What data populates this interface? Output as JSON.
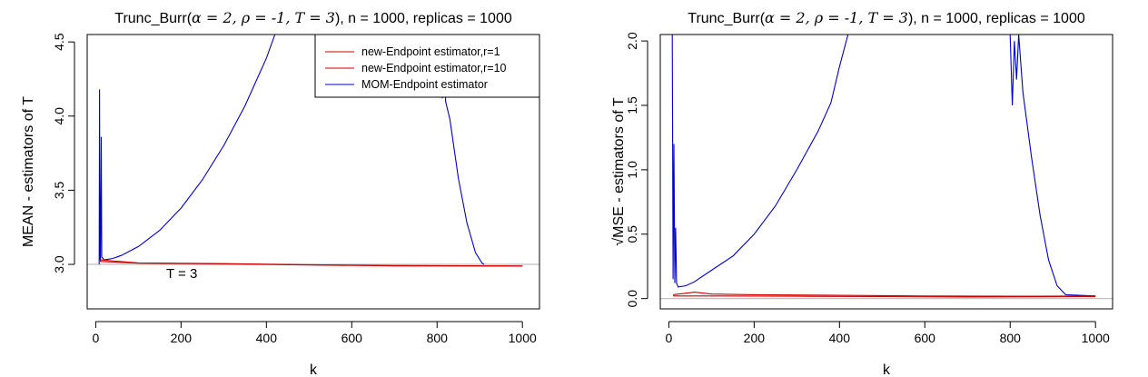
{
  "colors": {
    "new_endpoint": "#cc0000",
    "mom_endpoint": "#0000cc",
    "true_value_line": "#bebebe",
    "axes": "#000000"
  },
  "chart_data": [
    {
      "type": "line",
      "title_prefix": "Trunc_Burr(",
      "title_params": "α = 2, ρ = -1, T = 3",
      "title_suffix": "), n = 1000, replicas = 1000",
      "xlabel": "k",
      "ylabel": "MEAN - estimators of T",
      "xlim": [
        -20,
        1040
      ],
      "ylim": [
        2.7,
        4.55
      ],
      "xticks": [
        "0",
        "200",
        "400",
        "600",
        "800",
        "1000"
      ],
      "yticks": [
        "3.0",
        "3.5",
        "4.0",
        "4.5"
      ],
      "reference_line": 3.0,
      "annotation": "T = 3",
      "legend_position": "top-right",
      "legend": [
        {
          "label": "new-Endpoint estimator,r=1",
          "color": "#cc0000"
        },
        {
          "label": "new-Endpoint estimator,r=10",
          "color": "#cc0000"
        },
        {
          "label": "MOM-Endpoint estimator",
          "color": "#0000cc"
        }
      ],
      "series": [
        {
          "name": "new-Endpoint estimator,r=1",
          "color": "#cc0000",
          "points": [
            [
              10,
              3.03
            ],
            [
              100,
              3.01
            ],
            [
              300,
              3.005
            ],
            [
              500,
              2.998
            ],
            [
              700,
              2.992
            ],
            [
              1000,
              2.99
            ]
          ]
        },
        {
          "name": "new-Endpoint estimator,r=10",
          "color": "#cc0000",
          "points": [
            [
              10,
              3.02
            ],
            [
              100,
              3.008
            ],
            [
              300,
              3.003
            ],
            [
              500,
              2.996
            ],
            [
              700,
              2.99
            ],
            [
              1000,
              2.988
            ]
          ]
        },
        {
          "name": "MOM-Endpoint estimator",
          "color": "#0000cc",
          "points": [
            [
              8,
              3.0
            ],
            [
              9,
              4.18
            ],
            [
              10,
              3.05
            ],
            [
              11,
              3.02
            ],
            [
              13,
              3.86
            ],
            [
              14,
              3.05
            ],
            [
              20,
              3.03
            ],
            [
              40,
              3.04
            ],
            [
              60,
              3.06
            ],
            [
              100,
              3.12
            ],
            [
              150,
              3.23
            ],
            [
              200,
              3.38
            ],
            [
              250,
              3.57
            ],
            [
              300,
              3.8
            ],
            [
              350,
              4.07
            ],
            [
              400,
              4.39
            ],
            [
              420,
              4.55
            ],
            [
              800,
              4.55
            ],
            [
              805,
              4.18
            ],
            [
              808,
              4.5
            ],
            [
              812,
              4.12
            ],
            [
              816,
              4.5
            ],
            [
              820,
              4.1
            ],
            [
              830,
              3.98
            ],
            [
              850,
              3.58
            ],
            [
              870,
              3.28
            ],
            [
              890,
              3.08
            ],
            [
              905,
              3.01
            ],
            [
              910,
              3.0
            ]
          ]
        }
      ]
    },
    {
      "type": "line",
      "title_prefix": "Trunc_Burr(",
      "title_params": "α = 2, ρ = -1, T = 3",
      "title_suffix": "), n = 1000, replicas = 1000",
      "xlabel": "k",
      "ylabel_root": "√",
      "ylabel": "MSE - estimators of T",
      "xlim": [
        -20,
        1040
      ],
      "ylim": [
        -0.08,
        2.05
      ],
      "xticks": [
        "0",
        "200",
        "400",
        "600",
        "800",
        "1000"
      ],
      "yticks": [
        "0.0",
        "0.5",
        "1.0",
        "1.5",
        "2.0"
      ],
      "reference_line": 0.0,
      "series": [
        {
          "name": "new-Endpoint estimator,r=1",
          "color": "#cc0000",
          "points": [
            [
              10,
              0.03
            ],
            [
              60,
              0.05
            ],
            [
              100,
              0.035
            ],
            [
              200,
              0.03
            ],
            [
              400,
              0.025
            ],
            [
              600,
              0.02
            ],
            [
              800,
              0.018
            ],
            [
              1000,
              0.02
            ]
          ]
        },
        {
          "name": "new-Endpoint estimator,r=10",
          "color": "#cc0000",
          "points": [
            [
              10,
              0.02
            ],
            [
              100,
              0.02
            ],
            [
              300,
              0.018
            ],
            [
              500,
              0.015
            ],
            [
              700,
              0.012
            ],
            [
              1000,
              0.015
            ]
          ]
        },
        {
          "name": "MOM-Endpoint estimator",
          "color": "#0000cc",
          "points": [
            [
              8,
              2.05
            ],
            [
              10,
              0.15
            ],
            [
              12,
              1.2
            ],
            [
              14,
              0.12
            ],
            [
              16,
              0.55
            ],
            [
              18,
              0.12
            ],
            [
              22,
              0.09
            ],
            [
              40,
              0.1
            ],
            [
              60,
              0.13
            ],
            [
              100,
              0.22
            ],
            [
              150,
              0.33
            ],
            [
              200,
              0.5
            ],
            [
              250,
              0.72
            ],
            [
              300,
              1.0
            ],
            [
              350,
              1.3
            ],
            [
              380,
              1.52
            ],
            [
              400,
              1.8
            ],
            [
              420,
              2.05
            ],
            [
              800,
              2.05
            ],
            [
              805,
              1.5
            ],
            [
              810,
              2.0
            ],
            [
              815,
              1.7
            ],
            [
              820,
              2.05
            ],
            [
              830,
              1.6
            ],
            [
              850,
              1.1
            ],
            [
              870,
              0.65
            ],
            [
              890,
              0.3
            ],
            [
              910,
              0.1
            ],
            [
              930,
              0.03
            ],
            [
              1000,
              0.02
            ]
          ]
        }
      ]
    }
  ]
}
